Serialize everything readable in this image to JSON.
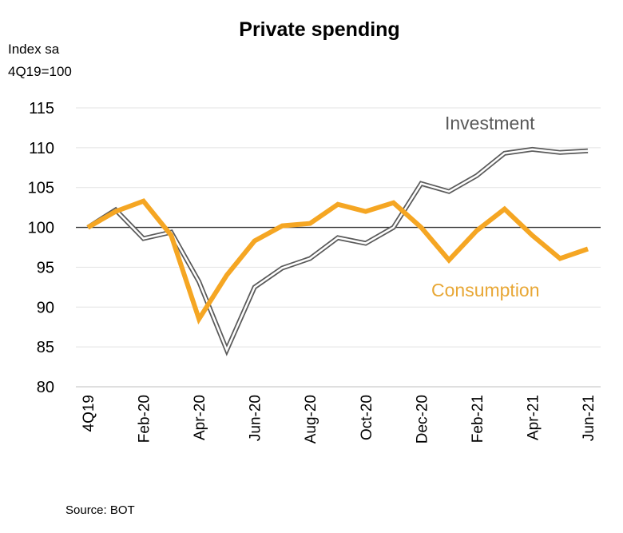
{
  "chart_data": {
    "type": "line",
    "title": "Private spending",
    "ylabel": [
      "Index sa",
      "4Q19=100"
    ],
    "ylim": [
      80,
      115
    ],
    "yticks": [
      80,
      85,
      90,
      95,
      100,
      105,
      110,
      115
    ],
    "reference_line": 100,
    "grid": true,
    "categories": [
      "4Q19",
      "Jan-20",
      "Feb-20",
      "Mar-20",
      "Apr-20",
      "May-20",
      "Jun-20",
      "Jul-20",
      "Aug-20",
      "Sep-20",
      "Oct-20",
      "Nov-20",
      "Dec-20",
      "Jan-21",
      "Feb-21",
      "Mar-21",
      "Apr-21",
      "May-21",
      "Jun-21"
    ],
    "xtick_labels": [
      "4Q19",
      "Feb-20",
      "Apr-20",
      "Jun-20",
      "Aug-20",
      "Oct-20",
      "Dec-20",
      "Feb-21",
      "Apr-21",
      "Jun-21"
    ],
    "series": [
      {
        "name": "Investment",
        "color": "#808080",
        "style": "double",
        "values": [
          100.0,
          102.2,
          98.6,
          99.4,
          93.2,
          84.6,
          92.5,
          94.9,
          96.1,
          98.7,
          98.0,
          100.0,
          105.5,
          104.5,
          106.5,
          109.3,
          109.8,
          109.4,
          109.6
        ]
      },
      {
        "name": "Consumption",
        "color": "#F5A623",
        "style": "solid",
        "values": [
          100.0,
          102.0,
          103.3,
          99.0,
          88.5,
          94.0,
          98.3,
          100.2,
          100.5,
          102.9,
          102.0,
          103.1,
          100.0,
          95.9,
          99.6,
          102.3,
          99.0,
          96.1,
          97.3
        ]
      }
    ],
    "annotations": [
      "Investment",
      "Consumption"
    ]
  },
  "footer": {
    "source": "Source: BOT"
  }
}
